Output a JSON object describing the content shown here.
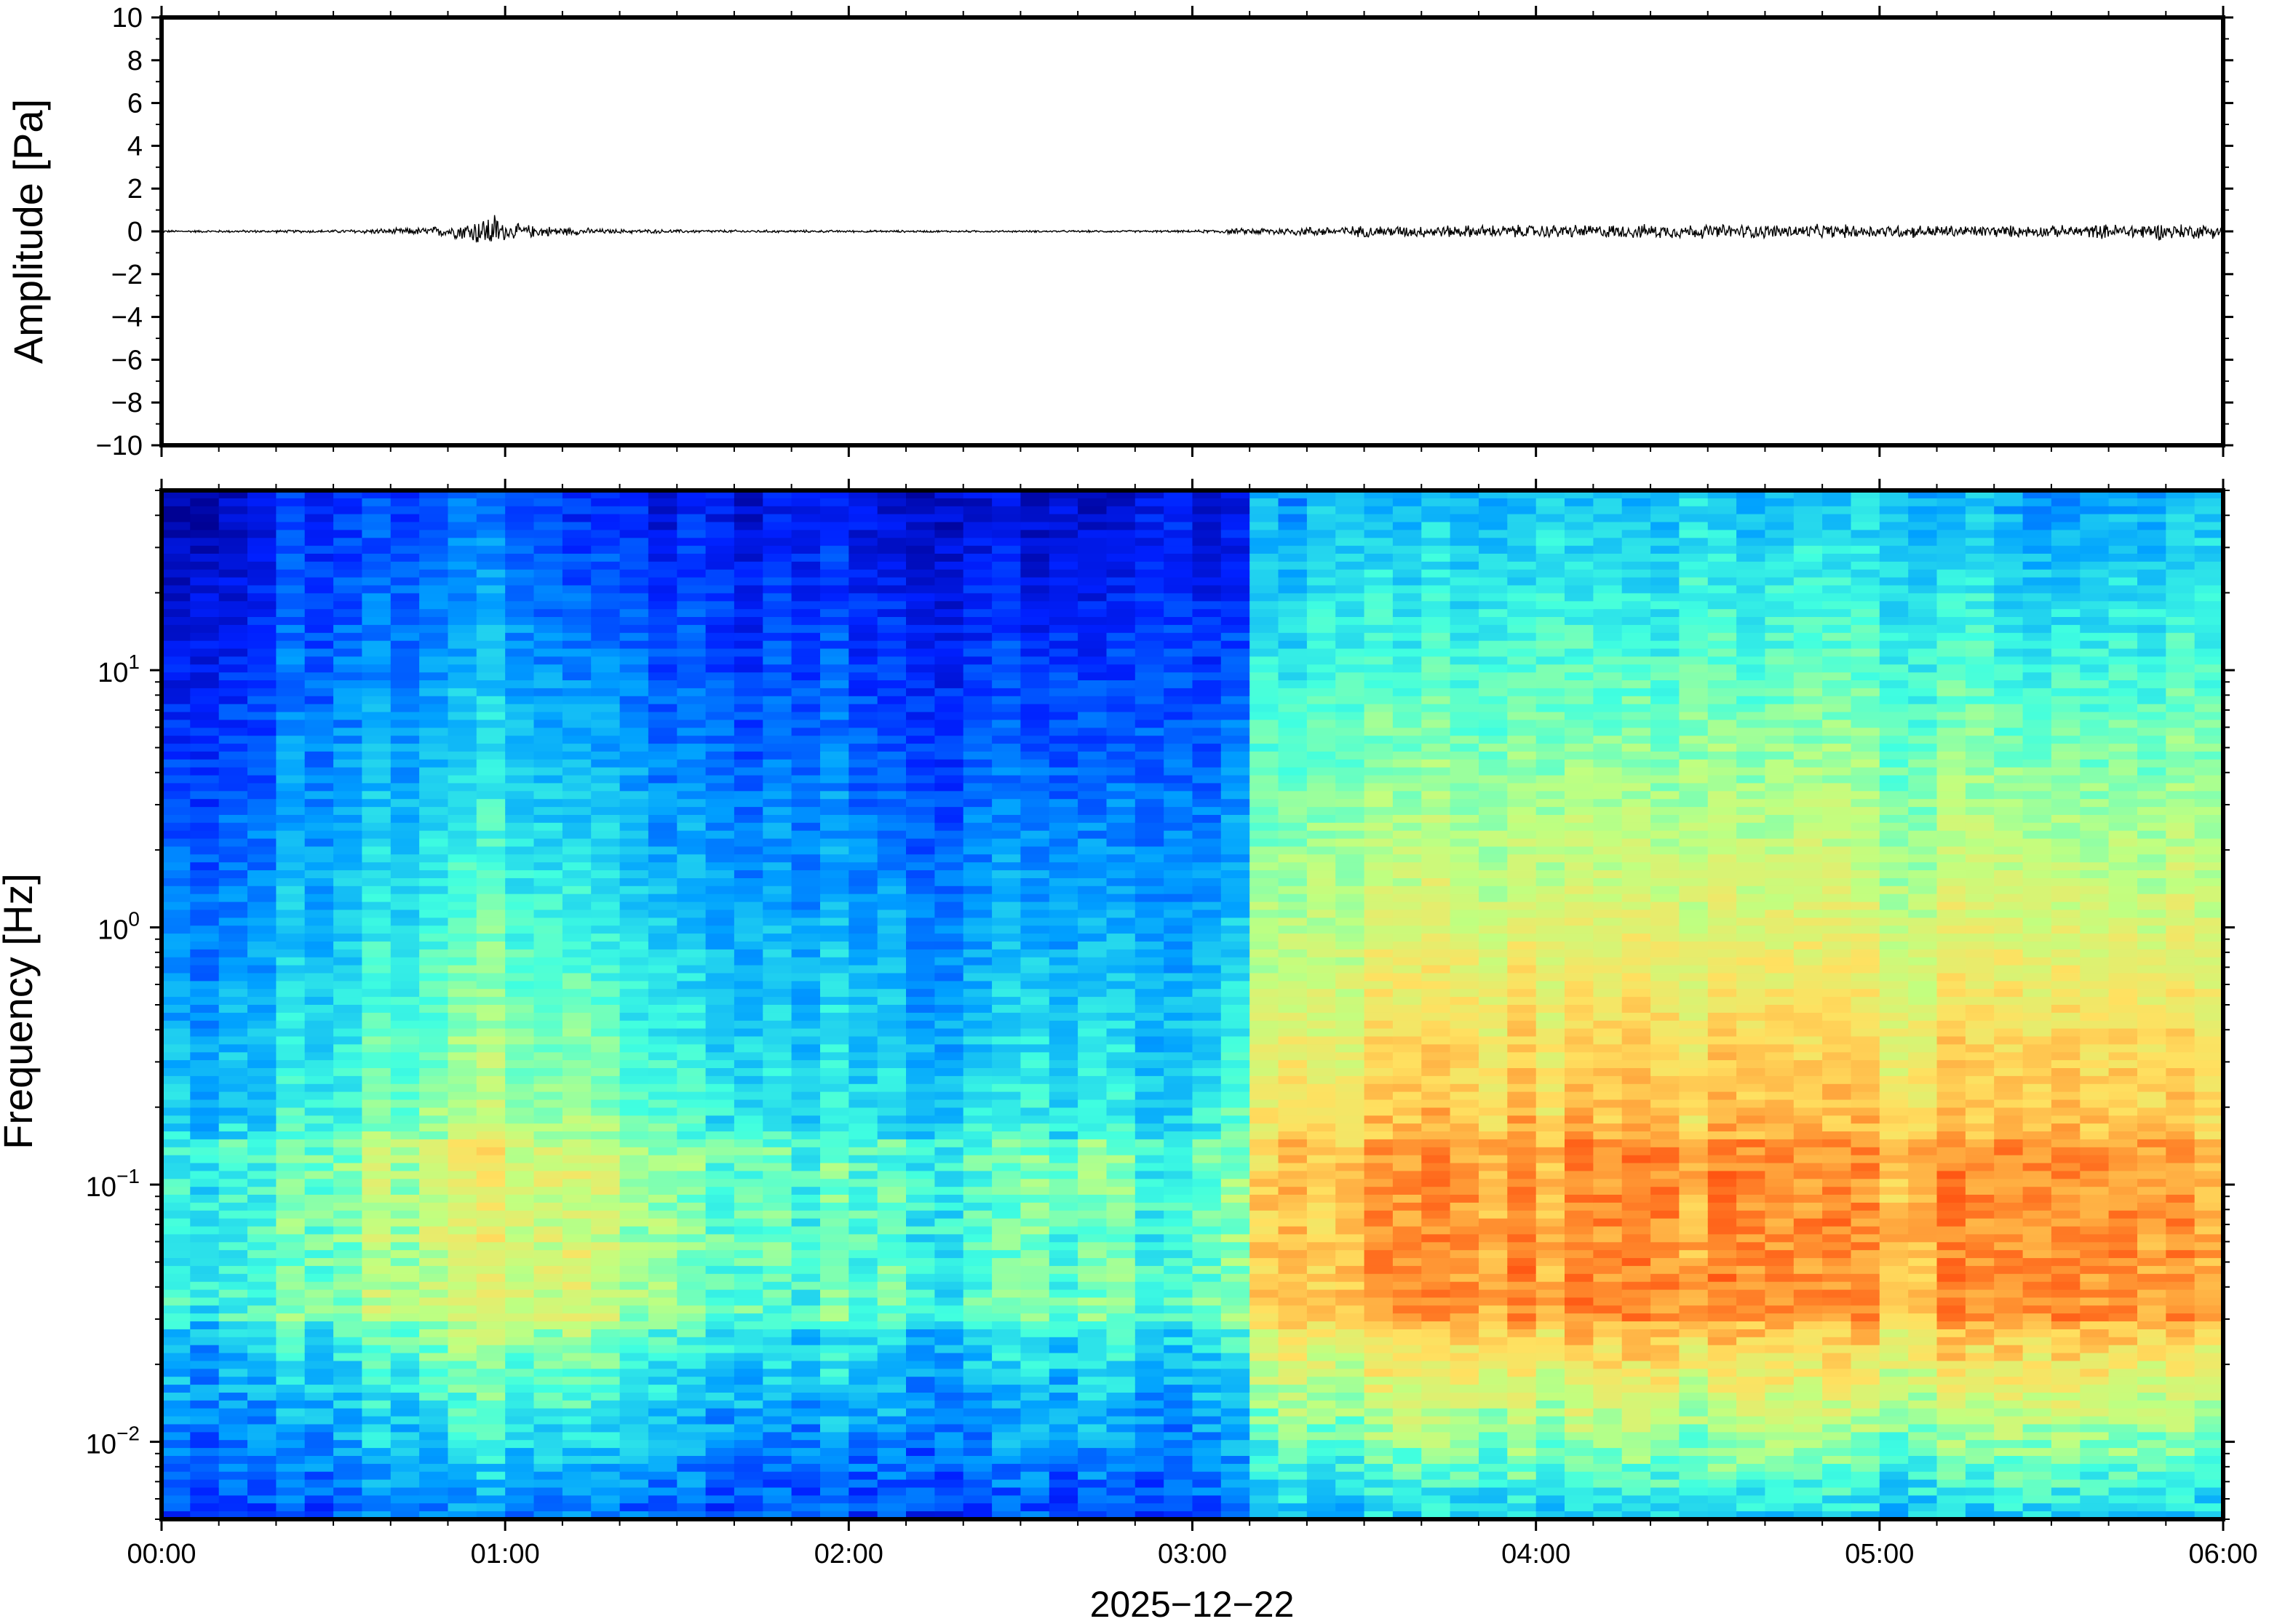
{
  "chart_data": [
    {
      "type": "line",
      "ylabel": "Amplitude [Pa]",
      "ylim": [
        -10,
        10
      ],
      "yticks": [
        10,
        8,
        6,
        4,
        2,
        0,
        -2,
        -4,
        -6,
        -8,
        -10
      ],
      "ytick_labels": [
        "10",
        "8",
        "6",
        "4",
        "2",
        "0",
        "−2",
        "−4",
        "−6",
        "−8",
        "−10"
      ],
      "xlim_hours": [
        0,
        6
      ],
      "series": [
        {
          "color": "#000000",
          "envelope_hours": [
            0.0,
            0.5,
            0.75,
            0.85,
            0.97,
            1.0,
            1.1,
            1.3,
            1.6,
            2.0,
            2.5,
            3.0,
            3.2,
            3.5,
            4.0,
            4.5,
            5.0,
            5.5,
            5.8,
            6.0
          ],
          "envelope_amplitude_pa": [
            0.06,
            0.08,
            0.2,
            0.35,
            1.0,
            0.45,
            0.3,
            0.12,
            0.08,
            0.06,
            0.05,
            0.06,
            0.2,
            0.3,
            0.35,
            0.38,
            0.35,
            0.3,
            0.45,
            0.35
          ]
        }
      ]
    },
    {
      "type": "heatmap",
      "ylabel": "Frequency [Hz]",
      "yscale": "log",
      "ylim_hz": [
        0.005,
        50
      ],
      "yticks_hz": [
        10,
        1,
        0.1,
        0.01
      ],
      "ytick_labels": [
        {
          "base": "10",
          "exp": "1"
        },
        {
          "base": "10",
          "exp": "0"
        },
        {
          "base": "10",
          "exp": "−1"
        },
        {
          "base": "10",
          "exp": "−2"
        }
      ],
      "xlabel": "2025−12−22",
      "xlim_hours": [
        0,
        6
      ],
      "xticks_hours": [
        0,
        1,
        2,
        3,
        4,
        5,
        6
      ],
      "xtick_labels": [
        "00:00",
        "01:00",
        "02:00",
        "03:00",
        "04:00",
        "05:00",
        "06:00"
      ],
      "colormap": [
        "#00008f",
        "#0020ff",
        "#00a0ff",
        "#40ffe0",
        "#c0ff80",
        "#ffe060",
        "#ff9030",
        "#ff3000"
      ],
      "time_segments_hours": [
        0.0,
        0.6,
        1.0,
        1.3,
        1.8,
        2.3,
        2.6,
        3.1,
        3.2,
        4.0,
        4.5,
        5.0,
        5.5,
        6.0
      ],
      "relative_power_low_freq": [
        0.35,
        0.5,
        0.6,
        0.5,
        0.4,
        0.35,
        0.4,
        0.4,
        0.7,
        0.78,
        0.78,
        0.75,
        0.78,
        0.8
      ],
      "relative_power_high_freq": [
        0.05,
        0.18,
        0.22,
        0.12,
        0.1,
        0.08,
        0.1,
        0.08,
        0.3,
        0.32,
        0.33,
        0.32,
        0.3,
        0.33
      ],
      "peak_band_hz": [
        0.03,
        0.15
      ]
    }
  ]
}
